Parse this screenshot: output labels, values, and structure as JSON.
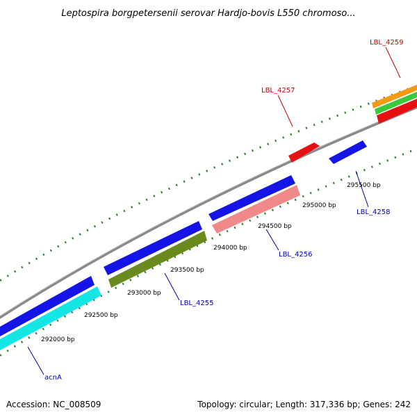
{
  "title": "Leptospira borgpetersenii serovar Hardjo-bovis L550 chromoso...",
  "footer": {
    "accession": "Accession: NC_008509",
    "summary": "Topology: circular; Length: 317,336 bp; Genes: 242"
  },
  "colors": {
    "backbone": "#8a8a8a",
    "tick": "#2e7d2e",
    "label_forward": "#cc0000",
    "label_reverse": "#0000b0",
    "blue_gene": "#1414e6",
    "red_gene": "#e61010",
    "pink_gene": "#f08a8a",
    "olive_gene": "#6b8a1e",
    "cyan_gene": "#14e6e6",
    "orange_gene": "#f59a14",
    "green_gene": "#3cc83c"
  },
  "tick_labels": [
    "292000 bp",
    "292500 bp",
    "293000 bp",
    "293500 bp",
    "294000 bp",
    "294500 bp",
    "295000 bp",
    "295500 bp"
  ],
  "gene_labels": [
    {
      "text": "LBL_4259",
      "strand": "forward"
    },
    {
      "text": "LBL_4257",
      "strand": "forward"
    },
    {
      "text": "LBL_4258",
      "strand": "reverse"
    },
    {
      "text": "LBL_4256",
      "strand": "reverse"
    },
    {
      "text": "LBL_4255",
      "strand": "reverse"
    },
    {
      "text": "acnA",
      "strand": "reverse"
    }
  ]
}
